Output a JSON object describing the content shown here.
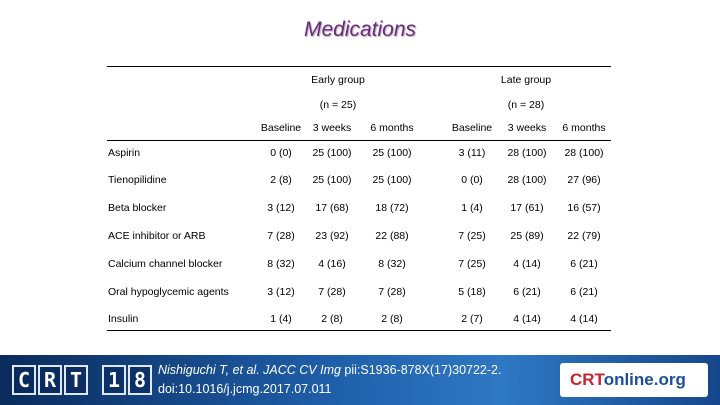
{
  "title": "Medications",
  "groups": {
    "early": {
      "label": "Early group",
      "n": "(n = 25)"
    },
    "late": {
      "label": "Late group",
      "n": "(n = 28)"
    }
  },
  "timepoints": [
    "Baseline",
    "3 weeks",
    "6 months",
    "Baseline",
    "3 weeks",
    "6 months"
  ],
  "rows": [
    {
      "label": "Aspirin",
      "values": [
        "0 (0)",
        "25 (100)",
        "25 (100)",
        "3 (11)",
        "28 (100)",
        "28 (100)"
      ]
    },
    {
      "label": "Tienopilidine",
      "values": [
        "2 (8)",
        "25 (100)",
        "25 (100)",
        "0 (0)",
        "28 (100)",
        "27 (96)"
      ]
    },
    {
      "label": "Beta blocker",
      "values": [
        "3 (12)",
        "17 (68)",
        "18 (72)",
        "1 (4)",
        "17 (61)",
        "16 (57)"
      ]
    },
    {
      "label": "ACE inhibitor or ARB",
      "values": [
        "7 (28)",
        "23 (92)",
        "22 (88)",
        "7 (25)",
        "25 (89)",
        "22 (79)"
      ]
    },
    {
      "label": "Calcium channel blocker",
      "values": [
        "8 (32)",
        "4 (16)",
        "8 (32)",
        "7 (25)",
        "4 (14)",
        "6 (21)"
      ]
    },
    {
      "label": "Oral hypoglycemic agents",
      "values": [
        "3 (12)",
        "7 (28)",
        "7 (28)",
        "5 (18)",
        "6 (21)",
        "6 (21)"
      ]
    },
    {
      "label": "Insulin",
      "values": [
        "1 (4)",
        "2 (8)",
        "2 (8)",
        "2 (7)",
        "4 (14)",
        "4 (14)"
      ]
    }
  ],
  "footer": {
    "logo_text": "CRT18",
    "citation_line1_italic": "Nishiguchi T, et al. JACC CV Img",
    "citation_line1_rest": " pii:S1936-878X(17)30722-2.",
    "citation_line2": "doi:10.1016/j.jcmg.2017.07.011",
    "brand_main": "CRT",
    "brand_suffix": "online.org",
    "brand_color_main": "#1c4f9a",
    "brand_color_accent": "#c4262e"
  }
}
